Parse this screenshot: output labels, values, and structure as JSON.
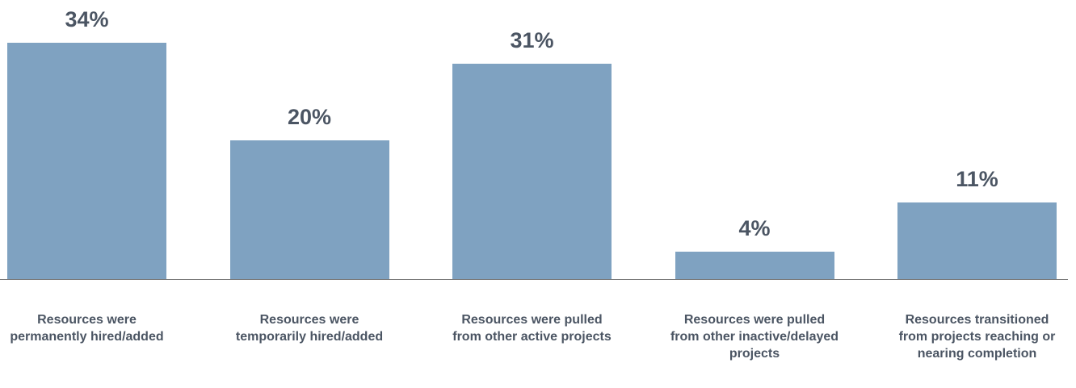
{
  "chart_data": {
    "type": "bar",
    "categories": [
      "Resources were permanently hired/added",
      "Resources were temporarily hired/added",
      "Resources were pulled from other active projects",
      "Resources were pulled from other inactive/delayed projects",
      "Resources transitioned from projects reaching or nearing completion"
    ],
    "values": [
      34,
      20,
      31,
      4,
      11
    ],
    "value_labels": [
      "34%",
      "20%",
      "31%",
      "4%",
      "11%"
    ],
    "color": "#7fa2c1"
  }
}
